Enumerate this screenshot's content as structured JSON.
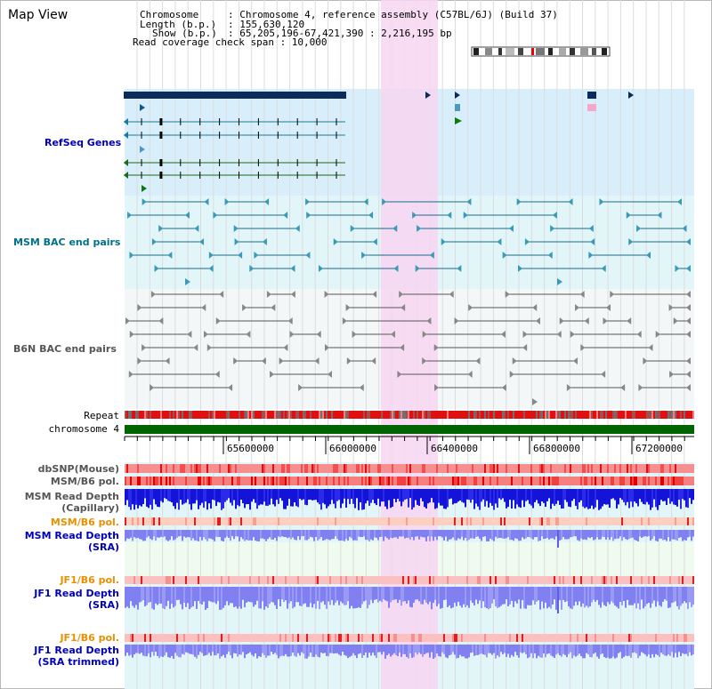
{
  "view": {
    "title": "Map View"
  },
  "header": {
    "chromosome_key": "Chromosome",
    "chromosome_val": ": Chromosome 4, reference assembly (C57BL/6J) (Build 37)",
    "length_key": "Length (b.p.)",
    "length_val": ": 155,630,120",
    "show_key": "Show (b.p.)",
    "show_val": ": 65,205,196-67,421,390 : 2,216,195 bp",
    "coverage": "Read coverage check span : 10,000"
  },
  "tracks": {
    "refseq": "RefSeq Genes",
    "msm_bac": "MSM BAC end pairs",
    "b6n_bac": "B6N BAC end pairs",
    "repeat": "Repeat",
    "chromosome": "chromosome 4",
    "dbsnp": "dbSNP(Mouse)",
    "msm_b6_pol_1": "MSM/B6 pol.",
    "msm_rd_cap_1": "MSM Read Depth",
    "msm_rd_cap_2": "(Capillary)",
    "msm_b6_pol_2": "MSM/B6 pol.",
    "msm_rd_sra_1": "MSM Read Depth",
    "msm_rd_sra_2": "(SRA)",
    "jf1_b6_pol_1": "JF1/B6 pol.",
    "jf1_rd_sra_1": "JF1 Read Depth",
    "jf1_rd_sra_2": "(SRA)",
    "jf1_b6_pol_2": "JF1/B6 pol.",
    "jf1_rd_trim_1": "JF1 Read Depth",
    "jf1_rd_trim_2": "(SRA trimmed)"
  },
  "axis": {
    "ticks": [
      "65600000",
      "66000000",
      "66400000",
      "66800000",
      "67200000"
    ]
  },
  "colors": {
    "refseq_bg": "#d8eefa",
    "bac_bg": "#e2f6fa",
    "highlight": "#f7d6f1",
    "track_label_blue": "#0000b8",
    "track_label_teal": "#006f88",
    "track_label_gray": "#555555",
    "track_label_orange": "#e89000",
    "chromosome_green": "#006400"
  }
}
